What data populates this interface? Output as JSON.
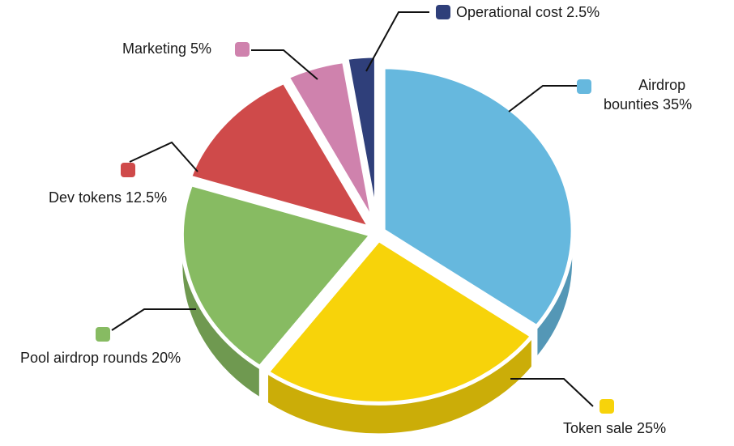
{
  "chart_data": {
    "type": "pie",
    "style": "3d-exploded",
    "slices": [
      {
        "label": "Airdrop bounties",
        "text": "Airdrop bounties 35%",
        "text_lines": [
          "Airdrop",
          "bounties 35%"
        ],
        "value": 35,
        "color": "#66b8de"
      },
      {
        "label": "Token sale",
        "text": "Token sale 25%",
        "value": 25,
        "color": "#f7d30a"
      },
      {
        "label": "Pool airdrop rounds",
        "text": "Pool airdrop rounds 20%",
        "value": 20,
        "color": "#87bb62"
      },
      {
        "label": "Dev tokens",
        "text": "Dev tokens 12.5%",
        "value": 12.5,
        "color": "#cf4a4a"
      },
      {
        "label": "Marketing",
        "text": "Marketing 5%",
        "value": 5,
        "color": "#cf82ad"
      },
      {
        "label": "Operational cost",
        "text": "Operational cost 2.5%",
        "value": 2.5,
        "color": "#2f3f7a"
      }
    ],
    "legend": "callout-labels"
  }
}
